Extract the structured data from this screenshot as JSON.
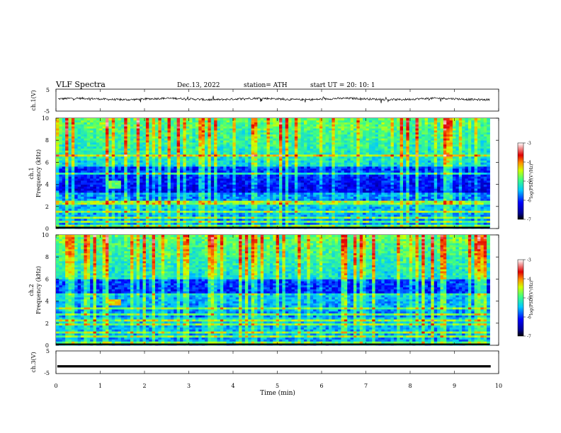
{
  "header": {
    "title": "VLF  Spectra",
    "date": "Dec.13, 2022",
    "station": "station= ATH",
    "start": "start  UT  =   20: 10: 1"
  },
  "chart_data": [
    {
      "type": "line",
      "panel": "ch1-waveform",
      "ylabel": "ch.1(V)",
      "ylim": [
        -5,
        5
      ],
      "yticks": [
        "5",
        "-5"
      ],
      "xlim": [
        0,
        10
      ],
      "baseline_value": 0.5,
      "amplitude_note": "noisy trace around 0 V, spikes to about ±1.5 V",
      "line_color": "#000000"
    },
    {
      "type": "heatmap",
      "panel": "ch1-spectrogram",
      "ylabel": "ch.1",
      "ylabel2": "Frequency  (kHz)",
      "ylim": [
        0,
        10
      ],
      "yticks": [
        "0",
        "2",
        "4",
        "6",
        "8",
        "10"
      ],
      "xlim": [
        0,
        9.8
      ],
      "colorbar": {
        "label": "log(PSD)(V²/Hz)",
        "range": [
          -7,
          -3
        ],
        "ticks": [
          "-3",
          "-4",
          "-5",
          "-6",
          "-7"
        ],
        "colors": [
          "#000000",
          "#00008f",
          "#0000ff",
          "#00c8ff",
          "#40ff80",
          "#d0ff00",
          "#ff9000",
          "#e00000",
          "#ffffff"
        ]
      },
      "features": {
        "hot_spot": {
          "time_min": [
            1.15,
            1.45
          ],
          "freq_khz": [
            3.6,
            4.3
          ],
          "level": -4.8
        },
        "dark_band_khz": [
          3.2,
          5.6
        ],
        "bright_lines_khz": [
          0.25,
          0.7,
          1.0,
          1.6,
          2.2,
          2.5,
          5.0,
          6.6
        ]
      }
    },
    {
      "type": "heatmap",
      "panel": "ch2-spectrogram",
      "ylabel": "ch.2",
      "ylabel2": "Frequency  (kHz)",
      "ylim": [
        0,
        10
      ],
      "yticks": [
        "0",
        "2",
        "4",
        "6",
        "8",
        "10"
      ],
      "xlim": [
        0,
        9.8
      ],
      "colorbar": {
        "label": "log(PSD)(V²/Hz)",
        "range": [
          -7,
          -3
        ],
        "ticks": [
          "-3",
          "-4",
          "-5",
          "-6",
          "-7"
        ]
      },
      "features": {
        "hot_spot": {
          "time_min": [
            1.15,
            1.45
          ],
          "freq_khz": [
            3.7,
            4.2
          ],
          "level": -4.3
        },
        "dark_band_khz": [
          4.5,
          6.0
        ],
        "bright_lines_khz": [
          0.3,
          0.8,
          1.2,
          1.9,
          2.2,
          2.8,
          3.4,
          4.6
        ]
      }
    },
    {
      "type": "line",
      "panel": "ch3-waveform",
      "ylabel": "ch.3(V)",
      "ylim": [
        -5,
        5
      ],
      "yticks": [
        "5",
        "-5"
      ],
      "xlim": [
        0,
        10
      ],
      "baseline_value": -1.8,
      "xlabel": "Time  (min)",
      "xticks": [
        "0",
        "1",
        "2",
        "3",
        "4",
        "5",
        "6",
        "7",
        "8",
        "9",
        "10"
      ]
    }
  ]
}
